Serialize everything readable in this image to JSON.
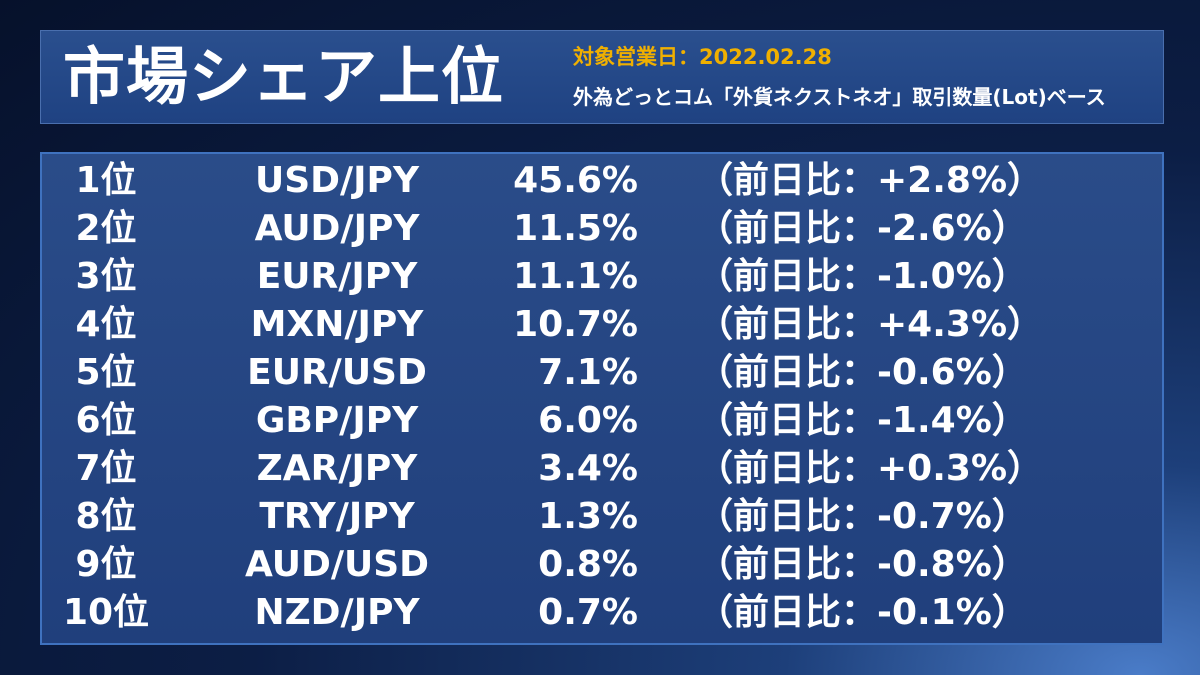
{
  "header": {
    "title": "市場シェア上位",
    "date_line": "対象営業日：2022.02.28",
    "subtitle": "外為どっとコム「外貨ネクストネオ」取引数量(Lot)ベース"
  },
  "colors": {
    "accent_date": "#f0b000",
    "text": "#ffffff",
    "panel": "#203f7c"
  },
  "rankings": [
    {
      "rank": "1位",
      "pair": "USD/JPY",
      "share": "45.6%",
      "change": "（前日比：+2.8%）"
    },
    {
      "rank": "2位",
      "pair": "AUD/JPY",
      "share": "11.5%",
      "change": "（前日比：-2.6%）"
    },
    {
      "rank": "3位",
      "pair": "EUR/JPY",
      "share": "11.1%",
      "change": "（前日比：-1.0%）"
    },
    {
      "rank": "4位",
      "pair": "MXN/JPY",
      "share": "10.7%",
      "change": "（前日比：+4.3%）"
    },
    {
      "rank": "5位",
      "pair": "EUR/USD",
      "share": "7.1%",
      "change": "（前日比：-0.6%）"
    },
    {
      "rank": "6位",
      "pair": "GBP/JPY",
      "share": "6.0%",
      "change": "（前日比：-1.4%）"
    },
    {
      "rank": "7位",
      "pair": "ZAR/JPY",
      "share": "3.4%",
      "change": "（前日比：+0.3%）"
    },
    {
      "rank": "8位",
      "pair": "TRY/JPY",
      "share": "1.3%",
      "change": "（前日比：-0.7%）"
    },
    {
      "rank": "9位",
      "pair": "AUD/USD",
      "share": "0.8%",
      "change": "（前日比：-0.8%）"
    },
    {
      "rank": "10位",
      "pair": "NZD/JPY",
      "share": "0.7%",
      "change": "（前日比：-0.1%）"
    }
  ]
}
